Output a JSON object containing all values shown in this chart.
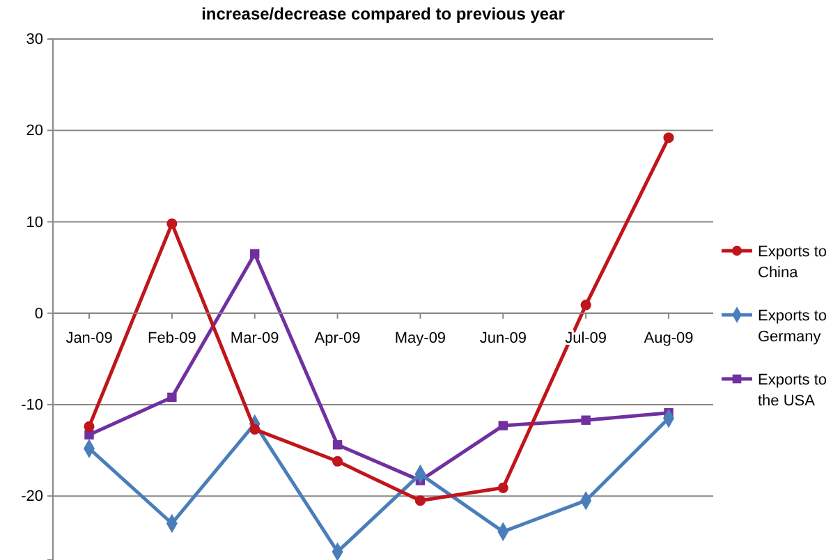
{
  "chart_data": {
    "type": "line",
    "title": "increase/decrease compared to previous year",
    "categories": [
      "Jan-09",
      "Feb-09",
      "Mar-09",
      "Apr-09",
      "May-09",
      "Jun-09",
      "Jul-09",
      "Aug-09"
    ],
    "series": [
      {
        "name": "Exports to China",
        "color": "#c0151a",
        "marker": "circle",
        "values": [
          -12.4,
          9.8,
          -12.7,
          -16.2,
          -20.5,
          -19.1,
          0.9,
          19.2
        ]
      },
      {
        "name": "Exports to Germany",
        "color": "#4a7ebb",
        "marker": "diamond",
        "values": [
          -14.8,
          -23,
          -12.1,
          -26.1,
          -17.6,
          -23.9,
          -20.5,
          -11.5
        ]
      },
      {
        "name": "Exports to the USA",
        "color": "#7030a0",
        "marker": "square",
        "values": [
          -13.3,
          -9.2,
          6.5,
          -14.4,
          -18.3,
          -12.3,
          -11.7,
          -10.9
        ]
      }
    ],
    "ylim": [
      -27,
      30
    ],
    "yticks": [
      -20,
      -10,
      0,
      10,
      20,
      30
    ],
    "grid": "y",
    "legend": "right",
    "line_style": "solid"
  }
}
